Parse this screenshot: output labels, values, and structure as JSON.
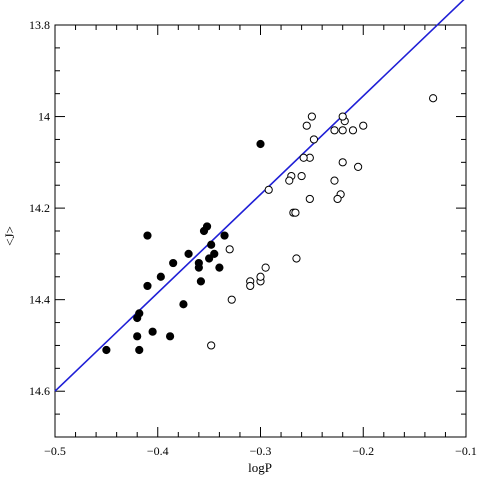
{
  "chart_data": {
    "type": "scatter",
    "xlabel": "logP",
    "ylabel": "<J>",
    "xlim": [
      -0.5,
      -0.1
    ],
    "ylim": [
      14.7,
      13.8
    ],
    "y_inverted": true,
    "xticks": [
      -0.5,
      -0.4,
      -0.3,
      -0.2,
      -0.1
    ],
    "xtick_labels": [
      "−0.5",
      "−0.4",
      "−0.3",
      "−0.2",
      "−0.1"
    ],
    "yticks": [
      13.8,
      14.0,
      14.2,
      14.4,
      14.6
    ],
    "ytick_labels": [
      "13.8",
      "14",
      "14.2",
      "14.4",
      "14.6"
    ],
    "grid": false,
    "fit_line": {
      "color": "#1f1fd6",
      "points": [
        [
          -0.5,
          14.6
        ],
        [
          -0.1,
          13.74
        ]
      ]
    },
    "series": [
      {
        "marker": "filled-circle",
        "color": "#000000",
        "points": [
          [
            -0.45,
            14.51
          ],
          [
            -0.42,
            14.48
          ],
          [
            -0.418,
            14.51
          ],
          [
            -0.42,
            14.44
          ],
          [
            -0.418,
            14.43
          ],
          [
            -0.41,
            14.37
          ],
          [
            -0.41,
            14.26
          ],
          [
            -0.405,
            14.47
          ],
          [
            -0.397,
            14.35
          ],
          [
            -0.388,
            14.48
          ],
          [
            -0.385,
            14.32
          ],
          [
            -0.375,
            14.41
          ],
          [
            -0.37,
            14.3
          ],
          [
            -0.36,
            14.33
          ],
          [
            -0.358,
            14.36
          ],
          [
            -0.355,
            14.25
          ],
          [
            -0.352,
            14.24
          ],
          [
            -0.35,
            14.31
          ],
          [
            -0.348,
            14.28
          ],
          [
            -0.345,
            14.3
          ],
          [
            -0.34,
            14.33
          ],
          [
            -0.335,
            14.26
          ],
          [
            -0.3,
            14.06
          ],
          [
            -0.36,
            14.32
          ]
        ]
      },
      {
        "marker": "open-circle",
        "color": "#000000",
        "points": [
          [
            -0.132,
            13.96
          ],
          [
            -0.2,
            14.02
          ],
          [
            -0.21,
            14.03
          ],
          [
            -0.218,
            14.01
          ],
          [
            -0.22,
            14.0
          ],
          [
            -0.22,
            14.03
          ],
          [
            -0.228,
            14.03
          ],
          [
            -0.25,
            14.0
          ],
          [
            -0.255,
            14.02
          ],
          [
            -0.248,
            14.05
          ],
          [
            -0.252,
            14.09
          ],
          [
            -0.258,
            14.09
          ],
          [
            -0.26,
            14.13
          ],
          [
            -0.205,
            14.11
          ],
          [
            -0.22,
            14.1
          ],
          [
            -0.228,
            14.14
          ],
          [
            -0.27,
            14.13
          ],
          [
            -0.272,
            14.14
          ],
          [
            -0.292,
            14.16
          ],
          [
            -0.252,
            14.18
          ],
          [
            -0.222,
            14.17
          ],
          [
            -0.225,
            14.18
          ],
          [
            -0.268,
            14.21
          ],
          [
            -0.266,
            14.21
          ],
          [
            -0.3,
            14.36
          ],
          [
            -0.3,
            14.35
          ],
          [
            -0.31,
            14.36
          ],
          [
            -0.31,
            14.37
          ],
          [
            -0.295,
            14.33
          ],
          [
            -0.265,
            14.31
          ],
          [
            -0.33,
            14.29
          ],
          [
            -0.328,
            14.4
          ],
          [
            -0.348,
            14.5
          ]
        ]
      }
    ]
  }
}
